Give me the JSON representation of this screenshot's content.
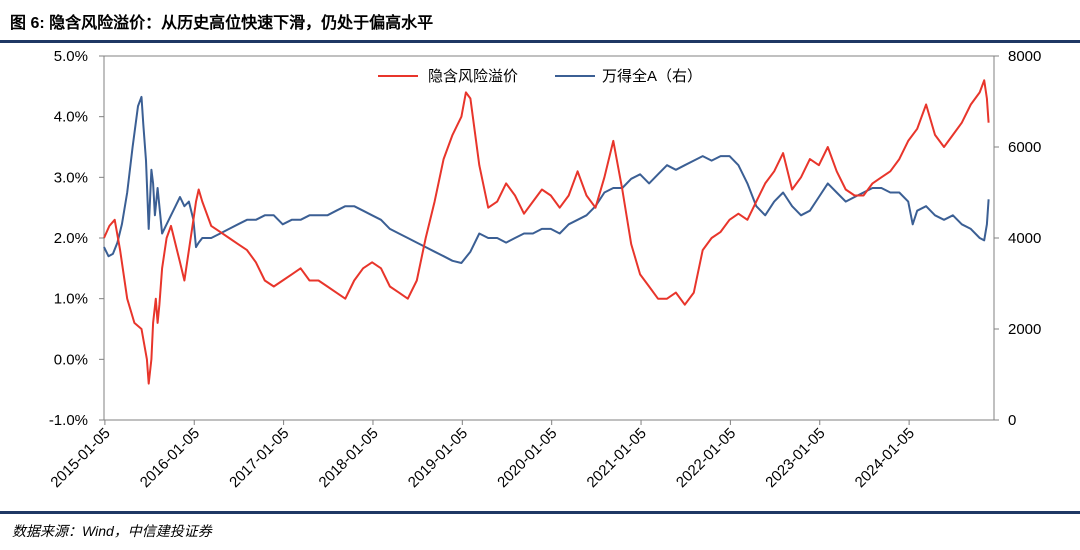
{
  "header": {
    "title": "图 6: 隐含风险溢价：从历史高位快速下滑，仍处于偏高水平"
  },
  "footer": {
    "source": "数据来源：Wind，中信建投证券"
  },
  "chart_data": {
    "type": "line",
    "title": "隐含风险溢价：从历史高位快速下滑，仍处于偏高水平",
    "xlabel": "",
    "ylabel": "",
    "x_tick_labels": [
      "2015-01-05",
      "2016-01-05",
      "2017-01-05",
      "2018-01-05",
      "2019-01-05",
      "2020-01-05",
      "2021-01-05",
      "2022-01-05",
      "2023-01-05",
      "2024-01-05"
    ],
    "y_left": {
      "ticks": [
        "5.0%",
        "4.0%",
        "3.0%",
        "2.0%",
        "1.0%",
        "0.0%",
        "-1.0%"
      ],
      "ylim": [
        -1.0,
        5.0
      ],
      "unit": "%"
    },
    "y_right": {
      "ticks": [
        "8000",
        "6000",
        "4000",
        "2000",
        "0"
      ],
      "ylim": [
        0,
        8000
      ]
    },
    "legend": {
      "position": "top-center"
    },
    "series": [
      {
        "name": "隐含风险溢价",
        "axis": "left",
        "color": "#e8352b",
        "x": [
          2015.0,
          2015.06,
          2015.12,
          2015.18,
          2015.26,
          2015.34,
          2015.42,
          2015.48,
          2015.5,
          2015.53,
          2015.55,
          2015.58,
          2015.6,
          2015.62,
          2015.65,
          2015.7,
          2015.75,
          2015.8,
          2015.85,
          2015.9,
          2015.95,
          2016.0,
          2016.03,
          2016.06,
          2016.1,
          2016.2,
          2016.3,
          2016.4,
          2016.5,
          2016.6,
          2016.7,
          2016.8,
          2016.9,
          2017.0,
          2017.1,
          2017.2,
          2017.3,
          2017.4,
          2017.5,
          2017.6,
          2017.7,
          2017.8,
          2017.9,
          2018.0,
          2018.1,
          2018.2,
          2018.3,
          2018.4,
          2018.5,
          2018.6,
          2018.7,
          2018.8,
          2018.9,
          2019.0,
          2019.05,
          2019.1,
          2019.2,
          2019.3,
          2019.4,
          2019.5,
          2019.6,
          2019.7,
          2019.8,
          2019.9,
          2020.0,
          2020.1,
          2020.2,
          2020.3,
          2020.4,
          2020.5,
          2020.6,
          2020.7,
          2020.8,
          2020.9,
          2021.0,
          2021.1,
          2021.2,
          2021.3,
          2021.4,
          2021.5,
          2021.6,
          2021.7,
          2021.8,
          2021.9,
          2022.0,
          2022.1,
          2022.2,
          2022.3,
          2022.4,
          2022.5,
          2022.6,
          2022.7,
          2022.8,
          2022.9,
          2023.0,
          2023.1,
          2023.2,
          2023.3,
          2023.4,
          2023.5,
          2023.6,
          2023.7,
          2023.8,
          2023.9,
          2024.0,
          2024.1,
          2024.2,
          2024.3,
          2024.4,
          2024.5,
          2024.6,
          2024.7,
          2024.8,
          2024.85,
          2024.88,
          2024.9
        ],
        "values": [
          2.0,
          2.2,
          2.3,
          1.8,
          1.0,
          0.6,
          0.5,
          0.0,
          -0.4,
          0.0,
          0.6,
          1.0,
          0.6,
          0.9,
          1.5,
          2.0,
          2.2,
          1.9,
          1.6,
          1.3,
          1.8,
          2.3,
          2.6,
          2.8,
          2.6,
          2.2,
          2.1,
          2.0,
          1.9,
          1.8,
          1.6,
          1.3,
          1.2,
          1.3,
          1.4,
          1.5,
          1.3,
          1.3,
          1.2,
          1.1,
          1.0,
          1.3,
          1.5,
          1.6,
          1.5,
          1.2,
          1.1,
          1.0,
          1.3,
          2.0,
          2.6,
          3.3,
          3.7,
          4.0,
          4.4,
          4.3,
          3.2,
          2.5,
          2.6,
          2.9,
          2.7,
          2.4,
          2.6,
          2.8,
          2.7,
          2.5,
          2.7,
          3.1,
          2.7,
          2.5,
          3.0,
          3.6,
          2.8,
          1.9,
          1.4,
          1.2,
          1.0,
          1.0,
          1.1,
          0.9,
          1.1,
          1.8,
          2.0,
          2.1,
          2.3,
          2.4,
          2.3,
          2.6,
          2.9,
          3.1,
          3.4,
          2.8,
          3.0,
          3.3,
          3.2,
          3.5,
          3.1,
          2.8,
          2.7,
          2.7,
          2.9,
          3.0,
          3.1,
          3.3,
          3.6,
          3.8,
          4.2,
          3.7,
          3.5,
          3.7,
          3.9,
          4.2,
          4.4,
          4.6,
          4.3,
          3.9
        ]
      },
      {
        "name": "万得全A（右）",
        "axis": "right",
        "color": "#3b5f94",
        "x": [
          2015.0,
          2015.05,
          2015.1,
          2015.15,
          2015.2,
          2015.26,
          2015.32,
          2015.38,
          2015.42,
          2015.44,
          2015.47,
          2015.5,
          2015.53,
          2015.55,
          2015.57,
          2015.6,
          2015.63,
          2015.65,
          2015.7,
          2015.75,
          2015.8,
          2015.85,
          2015.9,
          2015.95,
          2016.0,
          2016.03,
          2016.06,
          2016.1,
          2016.2,
          2016.3,
          2016.4,
          2016.5,
          2016.6,
          2016.7,
          2016.8,
          2016.9,
          2017.0,
          2017.1,
          2017.2,
          2017.3,
          2017.4,
          2017.5,
          2017.6,
          2017.7,
          2017.8,
          2017.9,
          2018.0,
          2018.1,
          2018.2,
          2018.3,
          2018.4,
          2018.5,
          2018.6,
          2018.7,
          2018.8,
          2018.9,
          2019.0,
          2019.1,
          2019.2,
          2019.3,
          2019.4,
          2019.5,
          2019.6,
          2019.7,
          2019.8,
          2019.9,
          2020.0,
          2020.1,
          2020.2,
          2020.3,
          2020.4,
          2020.5,
          2020.6,
          2020.7,
          2020.8,
          2020.9,
          2021.0,
          2021.1,
          2021.2,
          2021.3,
          2021.4,
          2021.5,
          2021.6,
          2021.7,
          2021.8,
          2021.9,
          2022.0,
          2022.1,
          2022.2,
          2022.3,
          2022.4,
          2022.5,
          2022.6,
          2022.7,
          2022.8,
          2022.9,
          2023.0,
          2023.1,
          2023.2,
          2023.3,
          2023.4,
          2023.5,
          2023.6,
          2023.7,
          2023.8,
          2023.9,
          2024.0,
          2024.05,
          2024.1,
          2024.2,
          2024.3,
          2024.4,
          2024.5,
          2024.6,
          2024.7,
          2024.8,
          2024.85,
          2024.88,
          2024.9
        ],
        "values": [
          3800,
          3600,
          3650,
          3900,
          4300,
          5000,
          6000,
          6900,
          7100,
          6500,
          5700,
          4200,
          5500,
          5200,
          4500,
          5100,
          4500,
          4100,
          4300,
          4500,
          4700,
          4900,
          4700,
          4800,
          4400,
          3800,
          3900,
          4000,
          4000,
          4100,
          4200,
          4300,
          4400,
          4400,
          4500,
          4500,
          4300,
          4400,
          4400,
          4500,
          4500,
          4500,
          4600,
          4700,
          4700,
          4600,
          4500,
          4400,
          4200,
          4100,
          4000,
          3900,
          3800,
          3700,
          3600,
          3500,
          3450,
          3700,
          4100,
          4000,
          4000,
          3900,
          4000,
          4100,
          4100,
          4200,
          4200,
          4100,
          4300,
          4400,
          4500,
          4700,
          5000,
          5100,
          5100,
          5300,
          5400,
          5200,
          5400,
          5600,
          5500,
          5600,
          5700,
          5800,
          5700,
          5800,
          5800,
          5600,
          5200,
          4700,
          4500,
          4800,
          5000,
          4700,
          4500,
          4600,
          4900,
          5200,
          5000,
          4800,
          4900,
          5000,
          5100,
          5100,
          5000,
          5000,
          4800,
          4300,
          4600,
          4700,
          4500,
          4400,
          4500,
          4300,
          4200,
          4000,
          3950,
          4300,
          4850
        ]
      }
    ]
  }
}
